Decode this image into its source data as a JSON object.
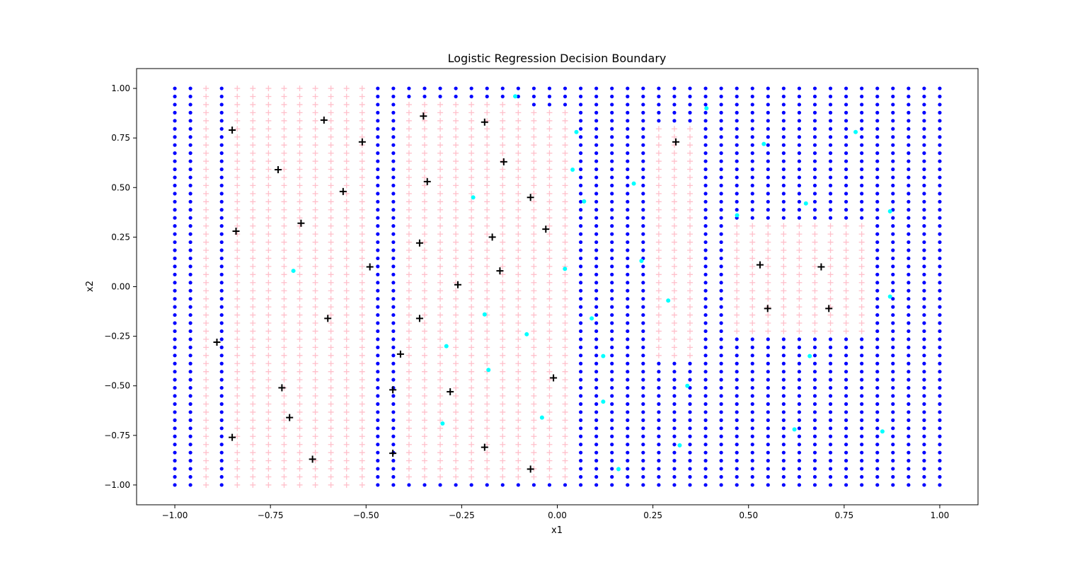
{
  "chart_data": {
    "type": "scatter",
    "title": "Logistic Regression Decision Boundary",
    "xlabel": "x1",
    "ylabel": "x2",
    "xlim": [
      -1.1,
      1.1
    ],
    "ylim": [
      -1.1,
      1.1
    ],
    "grid": false,
    "legend": "none",
    "xticks": [
      -1.0,
      -0.75,
      -0.5,
      -0.25,
      0.0,
      0.25,
      0.5,
      0.75,
      1.0
    ],
    "yticks": [
      -1.0,
      -0.75,
      -0.5,
      -0.25,
      0.0,
      0.25,
      0.5,
      0.75,
      1.0
    ],
    "xtick_labels": [
      "−1.00",
      "−0.75",
      "−0.50",
      "−0.25",
      "0.00",
      "0.25",
      "0.50",
      "0.75",
      "1.00"
    ],
    "ytick_labels": [
      "−1.00",
      "−0.75",
      "−0.50",
      "−0.25",
      "0.00",
      "0.25",
      "0.50",
      "0.75",
      "1.00"
    ],
    "grid_points": {
      "x_range": [
        -1.0,
        1.0
      ],
      "y_range": [
        -1.0,
        1.0
      ],
      "steps": 50,
      "negative_color": "#0000ff",
      "negative_marker": "dot",
      "positive_color": "#ffc0cb",
      "positive_marker": "plus",
      "positive_region_x_bands": [
        [
          -0.93,
          -0.91
        ],
        [
          -0.85,
          -0.47
        ],
        [
          -0.39,
          -0.1
        ],
        [
          -0.07,
          0.03
        ],
        [
          0.26,
          0.38
        ],
        [
          0.46,
          0.82
        ]
      ],
      "positive_region_y_bands": [
        [
          -1.0,
          1.0
        ],
        [
          -1.0,
          1.0
        ],
        [
          -0.98,
          0.95
        ],
        [
          -0.98,
          0.9
        ],
        [
          -0.35,
          0.82
        ],
        [
          -0.23,
          0.34
        ]
      ]
    },
    "series": [
      {
        "label_class": 1,
        "color": "#000000",
        "marker": "plus",
        "points": [
          [
            -0.85,
            0.79
          ],
          [
            -0.61,
            0.84
          ],
          [
            -0.51,
            0.73
          ],
          [
            -0.35,
            0.86
          ],
          [
            -0.19,
            0.83
          ],
          [
            -0.73,
            0.59
          ],
          [
            -0.14,
            0.63
          ],
          [
            -0.56,
            0.48
          ],
          [
            -0.34,
            0.53
          ],
          [
            -0.07,
            0.45
          ],
          [
            -0.67,
            0.32
          ],
          [
            -0.84,
            0.28
          ],
          [
            -0.17,
            0.25
          ],
          [
            -0.03,
            0.29
          ],
          [
            -0.36,
            0.22
          ],
          [
            -0.49,
            0.1
          ],
          [
            -0.15,
            0.08
          ],
          [
            -0.26,
            0.01
          ],
          [
            -0.6,
            -0.16
          ],
          [
            -0.36,
            -0.16
          ],
          [
            -0.89,
            -0.28
          ],
          [
            -0.41,
            -0.34
          ],
          [
            -0.72,
            -0.51
          ],
          [
            -0.43,
            -0.52
          ],
          [
            -0.28,
            -0.53
          ],
          [
            -0.01,
            -0.46
          ],
          [
            -0.7,
            -0.66
          ],
          [
            -0.85,
            -0.76
          ],
          [
            -0.19,
            -0.81
          ],
          [
            -0.43,
            -0.84
          ],
          [
            -0.64,
            -0.87
          ],
          [
            -0.07,
            -0.92
          ],
          [
            0.31,
            0.73
          ],
          [
            0.53,
            0.11
          ],
          [
            0.69,
            0.1
          ],
          [
            0.55,
            -0.11
          ],
          [
            0.71,
            -0.11
          ]
        ]
      },
      {
        "label_class": 0,
        "color": "#00ffff",
        "marker": "dot",
        "points": [
          [
            -0.11,
            0.96
          ],
          [
            0.39,
            0.9
          ],
          [
            0.05,
            0.78
          ],
          [
            0.54,
            0.72
          ],
          [
            0.78,
            0.78
          ],
          [
            0.04,
            0.59
          ],
          [
            0.2,
            0.52
          ],
          [
            -0.22,
            0.45
          ],
          [
            0.07,
            0.43
          ],
          [
            0.65,
            0.42
          ],
          [
            0.87,
            0.38
          ],
          [
            0.47,
            0.36
          ],
          [
            0.22,
            0.13
          ],
          [
            -0.69,
            0.08
          ],
          [
            0.02,
            0.09
          ],
          [
            0.29,
            -0.07
          ],
          [
            0.87,
            -0.05
          ],
          [
            -0.19,
            -0.14
          ],
          [
            0.09,
            -0.16
          ],
          [
            -0.08,
            -0.24
          ],
          [
            -0.29,
            -0.3
          ],
          [
            0.12,
            -0.35
          ],
          [
            0.66,
            -0.35
          ],
          [
            -0.18,
            -0.42
          ],
          [
            0.34,
            -0.5
          ],
          [
            0.12,
            -0.58
          ],
          [
            -0.3,
            -0.69
          ],
          [
            -0.04,
            -0.66
          ],
          [
            0.62,
            -0.72
          ],
          [
            0.85,
            -0.73
          ],
          [
            0.32,
            -0.8
          ],
          [
            0.16,
            -0.92
          ]
        ]
      }
    ]
  }
}
